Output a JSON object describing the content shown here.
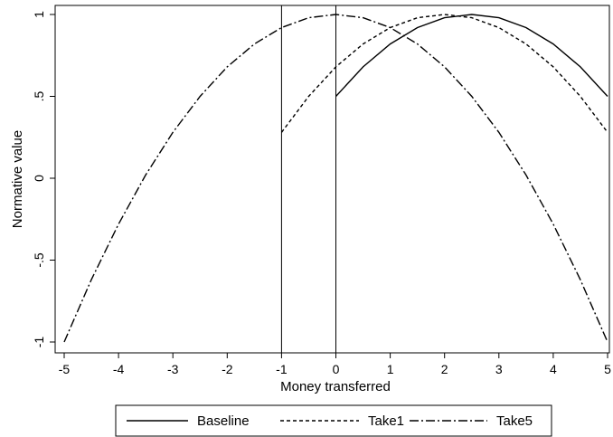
{
  "chart_data": {
    "type": "line",
    "xlabel": "Money transferred",
    "ylabel": "Normative value",
    "xlim": [
      -5,
      5
    ],
    "ylim": [
      -1,
      1
    ],
    "x_ticks": [
      "-5",
      "-4",
      "-3",
      "-2",
      "-1",
      "0",
      "1",
      "2",
      "3",
      "4",
      "5"
    ],
    "y_ticks": [
      "-1",
      "-.5",
      "0",
      ".5",
      "1"
    ],
    "reference_lines_x": [
      -1,
      0
    ],
    "legend_position": "bottom",
    "grid": false,
    "series": [
      {
        "name": "Baseline",
        "style": "solid",
        "color": "#000000",
        "x": [
          0,
          0.5,
          1,
          1.5,
          2,
          2.5,
          3,
          3.5,
          4,
          4.5,
          5
        ],
        "y": [
          0.5,
          0.68,
          0.82,
          0.92,
          0.98,
          1.0,
          0.98,
          0.92,
          0.82,
          0.68,
          0.5
        ]
      },
      {
        "name": "Take1",
        "style": "dashed",
        "color": "#000000",
        "x": [
          -1,
          -0.5,
          0,
          0.5,
          1,
          1.5,
          2,
          2.5,
          3,
          3.5,
          4,
          4.5,
          5
        ],
        "y": [
          0.28,
          0.5,
          0.68,
          0.82,
          0.92,
          0.98,
          1.0,
          0.98,
          0.92,
          0.82,
          0.68,
          0.5,
          0.28
        ]
      },
      {
        "name": "Take5",
        "style": "dashdot",
        "color": "#000000",
        "x": [
          -5,
          -4.5,
          -4,
          -3.5,
          -3,
          -2.5,
          -2,
          -1.5,
          -1,
          -0.5,
          0,
          0.5,
          1,
          1.5,
          2,
          2.5,
          3,
          3.5,
          4,
          4.5,
          5
        ],
        "y": [
          -1.0,
          -0.62,
          -0.28,
          0.02,
          0.28,
          0.5,
          0.68,
          0.82,
          0.92,
          0.98,
          1.0,
          0.98,
          0.92,
          0.82,
          0.68,
          0.5,
          0.28,
          0.02,
          -0.28,
          -0.62,
          -1.0
        ]
      }
    ]
  }
}
